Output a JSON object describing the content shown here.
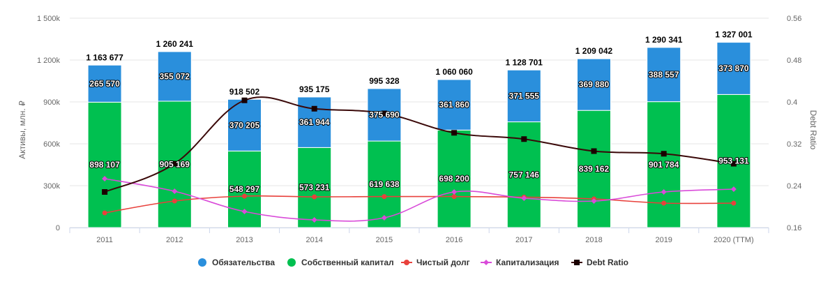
{
  "chart_data": {
    "type": "bar",
    "categories": [
      "2011",
      "2012",
      "2013",
      "2014",
      "2015",
      "2016",
      "2017",
      "2018",
      "2019",
      "2020 (TTM)"
    ],
    "ylabel": "Активы, млн. ₽",
    "y2label": "Debt Ratio",
    "ylim": [
      0,
      1500000
    ],
    "y2lim": [
      0.16,
      0.56
    ],
    "y_ticks": [
      "0",
      "300k",
      "600k",
      "900k",
      "1 200k",
      "1 500k"
    ],
    "y2_ticks": [
      "0.16",
      "0.24",
      "0.32",
      "0.4",
      "0.48",
      "0.56"
    ],
    "stacked_series": [
      {
        "name": "Собственный капитал",
        "color": "#00c050",
        "values": [
          898107,
          905169,
          548297,
          573231,
          619638,
          698200,
          757146,
          839162,
          901784,
          953131
        ],
        "labels": [
          "898 107",
          "905 169",
          "548 297",
          "573 231",
          "619 638",
          "698 200",
          "757 146",
          "839 162",
          "901 784",
          "953 131"
        ]
      },
      {
        "name": "Обязательства",
        "color": "#2a8fdc",
        "values": [
          265570,
          355072,
          370205,
          361944,
          375690,
          361860,
          371555,
          369880,
          388557,
          373870
        ],
        "labels": [
          "265 570",
          "355 072",
          "370 205",
          "361 944",
          "375 690",
          "361 860",
          "371 555",
          "369 880",
          "388 557",
          "373 870"
        ]
      }
    ],
    "totals": [
      "1 163 677",
      "1 260 241",
      "918 502",
      "935 175",
      "995 328",
      "1 060 060",
      "1 128 701",
      "1 209 042",
      "1 290 341",
      "1 327 001"
    ],
    "line_series": [
      {
        "name": "Чистый долг",
        "color": "#e8413c",
        "marker": "circle",
        "axis": "left",
        "values": [
          105000,
          190000,
          225000,
          220000,
          222000,
          222000,
          218000,
          205000,
          175000,
          175000
        ]
      },
      {
        "name": "Капитализация",
        "color": "#d94bd9",
        "marker": "diamond",
        "axis": "left",
        "values": [
          350000,
          260000,
          115000,
          55000,
          70000,
          255000,
          210000,
          190000,
          255000,
          275000
        ]
      },
      {
        "name": "Debt Ratio",
        "color": "#3a0808",
        "marker": "square",
        "axis": "right",
        "values": [
          0.228,
          0.282,
          0.403,
          0.387,
          0.378,
          0.341,
          0.329,
          0.306,
          0.301,
          0.282
        ]
      }
    ],
    "legend": {
      "position": "bottom",
      "items": [
        {
          "name": "Обязательства",
          "color": "#2a8fdc",
          "marker": "circle"
        },
        {
          "name": "Собственный капитал",
          "color": "#00c050",
          "marker": "circle"
        },
        {
          "name": "Чистый долг",
          "color": "#e8413c",
          "marker": "line-circle"
        },
        {
          "name": "Капитализация",
          "color": "#d94bd9",
          "marker": "line-diamond"
        },
        {
          "name": "Debt Ratio",
          "color": "#3a0808",
          "marker": "line-square"
        }
      ]
    },
    "grid": true
  }
}
